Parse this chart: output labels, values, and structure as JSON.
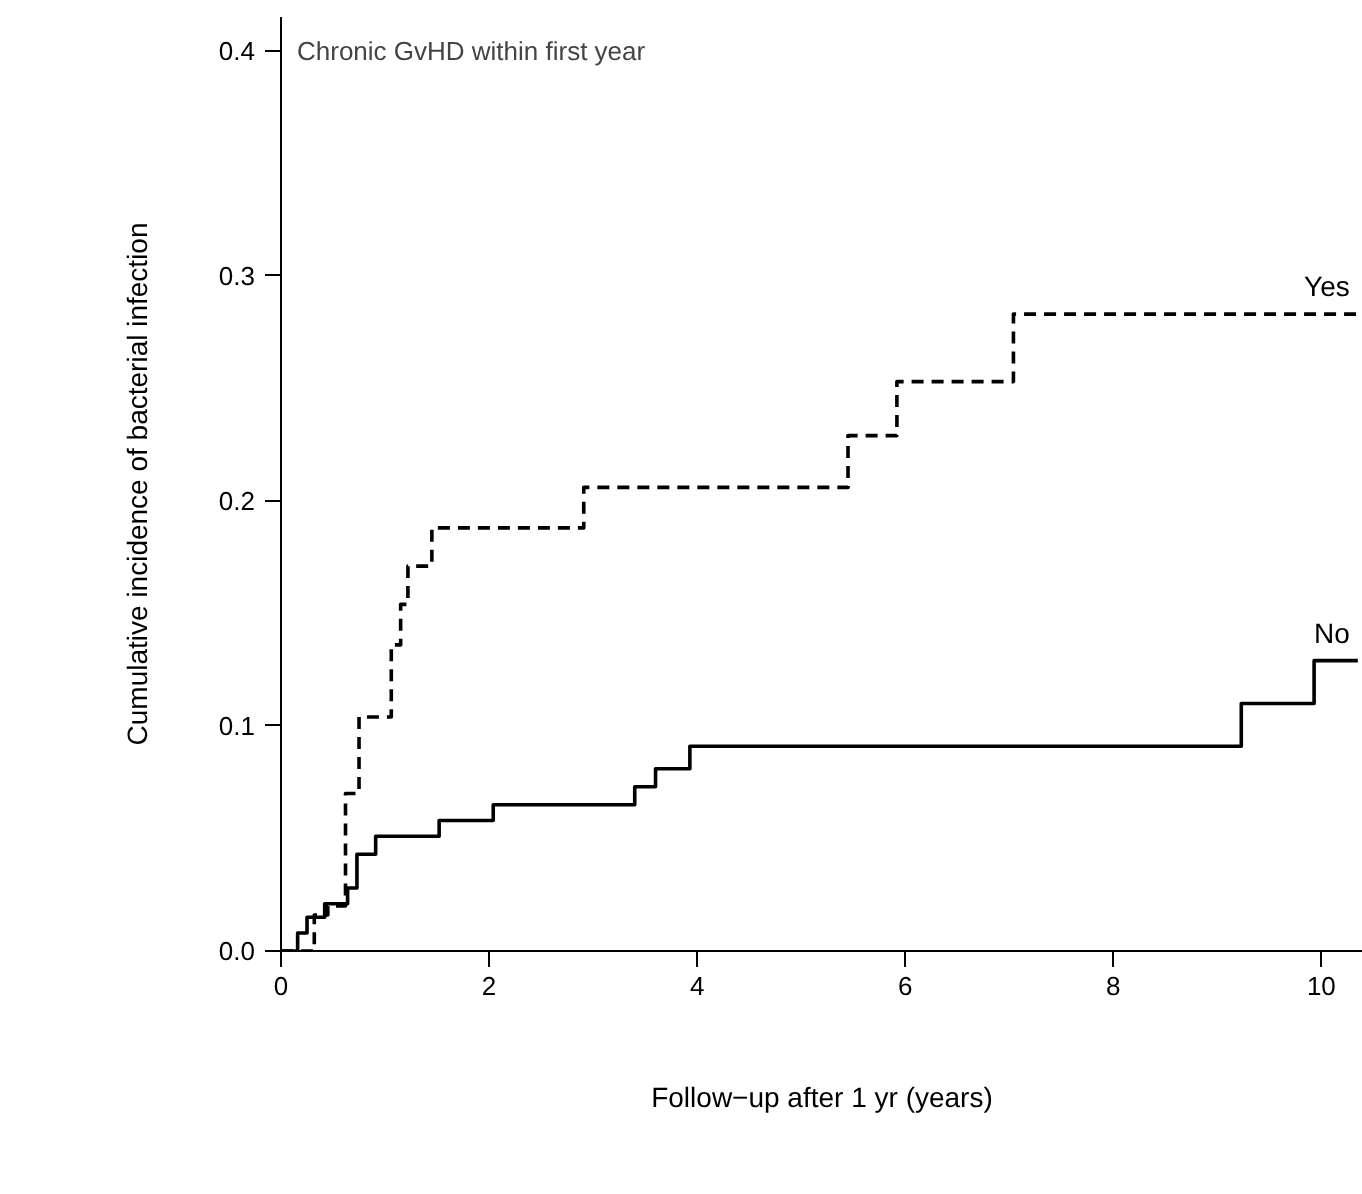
{
  "chart_data": {
    "type": "step",
    "title": "Chronic GvHD within first year",
    "xlabel": "Follow−up after 1 yr (years)",
    "ylabel": "Cumulative incidence of bacterial infection",
    "xlim": [
      0,
      10.4
    ],
    "ylim": [
      0,
      0.415
    ],
    "xticks": [
      0,
      2,
      4,
      6,
      8,
      10
    ],
    "yticks": [
      {
        "value": 0,
        "label": "0.0"
      },
      0.1,
      0.2,
      0.3,
      0.4
    ],
    "grid": false,
    "series": [
      {
        "name": "Yes",
        "color": "#000000",
        "line_style": "dashed",
        "x": [
          0,
          0.32,
          0.45,
          0.62,
          0.75,
          1.06,
          1.15,
          1.22,
          1.45,
          2.91,
          5.45,
          5.92,
          7.04,
          10.35
        ],
        "values": [
          0,
          0.016,
          0.02,
          0.07,
          0.104,
          0.136,
          0.154,
          0.171,
          0.188,
          0.206,
          0.229,
          0.253,
          0.283,
          0.283
        ]
      },
      {
        "name": "No",
        "color": "#000000",
        "line_style": "solid",
        "x": [
          0,
          0.16,
          0.25,
          0.42,
          0.64,
          0.73,
          0.91,
          1.52,
          2.04,
          3.4,
          3.6,
          3.93,
          9.23,
          9.93,
          10.35
        ],
        "values": [
          0,
          0.008,
          0.015,
          0.021,
          0.028,
          0.043,
          0.051,
          0.058,
          0.065,
          0.073,
          0.081,
          0.091,
          0.11,
          0.129,
          0.129
        ]
      }
    ]
  }
}
